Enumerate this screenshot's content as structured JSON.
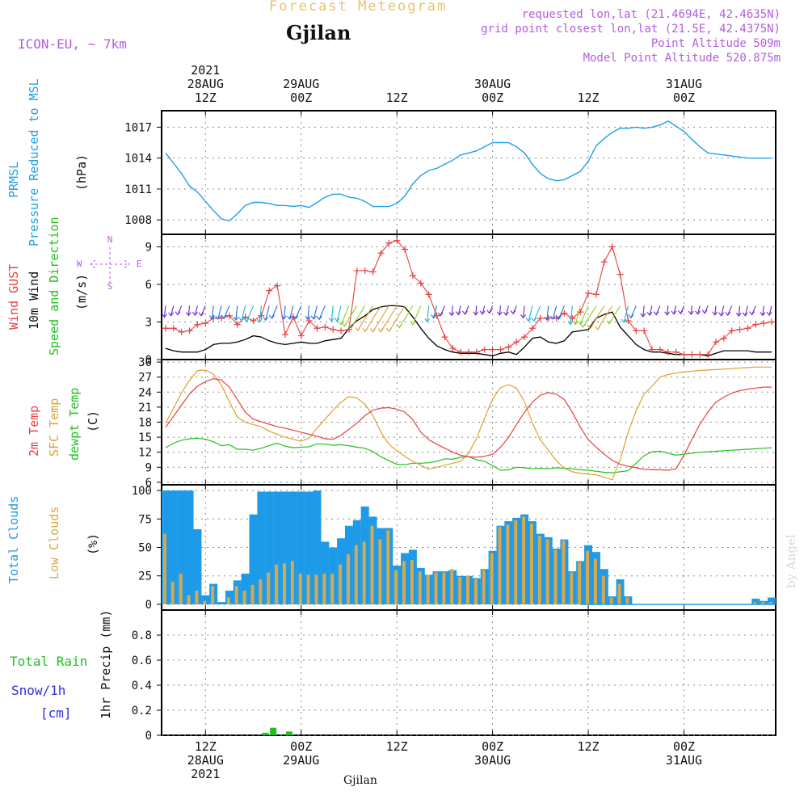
{
  "header": {
    "title": "Forecast Meteogram",
    "location": "Gjilan",
    "model": "ICON-EU, ~ 7km",
    "requested": "requested lon,lat (21.4694E, 42.4635N)",
    "grid_point": "grid point closest lon,lat (21.5E, 42.4375N)",
    "point_altitude": "Point Altitude 509m",
    "model_altitude": "Model Point Altitude 520.875m"
  },
  "footer": {
    "location": "Gjilan",
    "credit": "by Angel"
  },
  "colors": {
    "pressure": "#1ea0e8",
    "gust": "#e84040",
    "wind": "#000000",
    "temp2m": "#e84040",
    "sfc": "#e0a030",
    "dewpt": "#20c020",
    "total_clouds": "#1e9be8",
    "low_clouds": "#d9a84a",
    "rain": "#20c020",
    "snow": "#3030e0",
    "compass": "#b25ddc"
  },
  "time_axis": {
    "ticks": [
      {
        "t": 12,
        "top": [
          "2021",
          "28AUG",
          "12Z"
        ],
        "bottom": [
          "12Z",
          "28AUG",
          "2021"
        ]
      },
      {
        "t": 24,
        "top": [
          "29AUG",
          "00Z"
        ],
        "bottom": [
          "00Z",
          "29AUG"
        ]
      },
      {
        "t": 36,
        "top": [
          "12Z"
        ],
        "bottom": [
          "12Z"
        ]
      },
      {
        "t": 48,
        "top": [
          "30AUG",
          "00Z"
        ],
        "bottom": [
          "00Z",
          "30AUG"
        ]
      },
      {
        "t": 60,
        "top": [
          "12Z"
        ],
        "bottom": [
          "12Z"
        ]
      },
      {
        "t": 72,
        "top": [
          "31AUG",
          "00Z"
        ],
        "bottom": [
          "00Z",
          "31AUG"
        ]
      }
    ]
  },
  "chart_data": [
    {
      "type": "line",
      "panel": "pressure",
      "ylabel_lines": [
        "PRMSL",
        "Pressure Reduced to MSL"
      ],
      "unit": "(hPa)",
      "ylim": [
        1006.6,
        1018.6
      ],
      "yticks": [
        1008,
        1011,
        1014,
        1017
      ],
      "x_hours": [
        7,
        8,
        9,
        10,
        11,
        12,
        13,
        14,
        15,
        16,
        17,
        18,
        19,
        20,
        21,
        22,
        23,
        24,
        25,
        26,
        27,
        28,
        29,
        30,
        31,
        32,
        33,
        34,
        35,
        36,
        37,
        38,
        39,
        40,
        41,
        42,
        43,
        44,
        45,
        46,
        47,
        48,
        49,
        50,
        51,
        52,
        53,
        54,
        55,
        56,
        57,
        58,
        59,
        60,
        61,
        62,
        63,
        64,
        65,
        66,
        67,
        68,
        69,
        70,
        71,
        72,
        73,
        74,
        75,
        76,
        77,
        78,
        79,
        80,
        81,
        82,
        83
      ],
      "values": [
        1014.5,
        1013.5,
        1012.5,
        1011.3,
        1010.7,
        1009.8,
        1008.9,
        1008.1,
        1007.9,
        1008.6,
        1009.4,
        1009.7,
        1009.7,
        1009.6,
        1009.4,
        1009.4,
        1009.3,
        1009.4,
        1009.2,
        1009.7,
        1010.2,
        1010.5,
        1010.5,
        1010.2,
        1010.1,
        1009.8,
        1009.3,
        1009.3,
        1009.3,
        1009.6,
        1010.3,
        1011.5,
        1012.3,
        1012.8,
        1013.0,
        1013.4,
        1013.8,
        1014.3,
        1014.5,
        1014.7,
        1015.1,
        1015.5,
        1015.5,
        1015.5,
        1015.1,
        1014.5,
        1013.4,
        1012.5,
        1012.0,
        1011.8,
        1011.9,
        1012.3,
        1012.7,
        1013.7,
        1015.2,
        1015.9,
        1016.5,
        1016.9,
        1016.9,
        1017.0,
        1016.9,
        1017.0,
        1017.2,
        1017.6,
        1017.1,
        1016.6,
        1015.8,
        1015.1,
        1014.5,
        1014.4,
        1014.3,
        1014.2,
        1014.1,
        1014.0,
        1014.0,
        1014.0,
        1014.0
      ]
    },
    {
      "type": "line",
      "panel": "wind",
      "ylabel_lines": [
        "Wind GUST",
        "10m Wind",
        "Speed and Direction"
      ],
      "unit": "(m/s)",
      "ylim": [
        0,
        10
      ],
      "yticks": [
        0,
        3,
        6,
        9
      ],
      "compass": {
        "n": "N",
        "w": "W",
        "e": "E",
        "s": "S"
      },
      "x_hours": [
        7,
        8,
        9,
        10,
        11,
        12,
        13,
        14,
        15,
        16,
        17,
        18,
        19,
        20,
        21,
        22,
        23,
        24,
        25,
        26,
        27,
        28,
        29,
        30,
        31,
        32,
        33,
        34,
        35,
        36,
        37,
        38,
        39,
        40,
        41,
        42,
        43,
        44,
        45,
        46,
        47,
        48,
        49,
        50,
        51,
        52,
        53,
        54,
        55,
        56,
        57,
        58,
        59,
        60,
        61,
        62,
        63,
        64,
        65,
        66,
        67,
        68,
        69,
        70,
        71,
        72,
        73,
        74,
        75,
        76,
        77,
        78,
        79,
        80,
        81,
        82,
        83
      ],
      "series": [
        {
          "name": "Wind GUST",
          "values": [
            2.5,
            2.5,
            2.2,
            2.3,
            2.8,
            2.9,
            3.3,
            3.3,
            3.5,
            2.8,
            3.4,
            3.1,
            3.5,
            5.5,
            5.9,
            2.0,
            3.4,
            1.9,
            3.1,
            2.5,
            2.6,
            2.4,
            2.3,
            2.4,
            7.1,
            7.1,
            7.0,
            8.5,
            9.3,
            9.5,
            8.8,
            6.7,
            6.1,
            5.2,
            3.5,
            1.8,
            0.9,
            0.6,
            0.6,
            0.6,
            0.8,
            0.8,
            0.8,
            1.0,
            1.4,
            1.8,
            2.5,
            3.3,
            3.3,
            3.3,
            3.7,
            3.3,
            3.8,
            5.3,
            5.2,
            7.8,
            9.0,
            6.8,
            3.1,
            2.3,
            2.3,
            0.8,
            0.8,
            0.6,
            0.6,
            0.4,
            0.4,
            0.4,
            0.4,
            1.4,
            1.7,
            2.3,
            2.4,
            2.5,
            2.8,
            2.9,
            3.0
          ]
        },
        {
          "name": "10m Wind",
          "values": [
            0.9,
            0.7,
            0.6,
            0.6,
            0.6,
            0.8,
            1.2,
            1.3,
            1.3,
            1.4,
            1.6,
            1.9,
            1.8,
            1.5,
            1.3,
            1.2,
            1.3,
            1.4,
            1.3,
            1.3,
            1.5,
            1.6,
            1.7,
            2.5,
            3.1,
            3.5,
            4.0,
            4.2,
            4.3,
            4.3,
            4.2,
            3.4,
            2.5,
            1.7,
            1.1,
            0.8,
            0.6,
            0.5,
            0.5,
            0.5,
            0.4,
            0.3,
            0.5,
            0.6,
            0.4,
            1.0,
            1.7,
            1.8,
            1.4,
            1.3,
            1.5,
            2.2,
            2.3,
            2.4,
            3.3,
            3.6,
            3.8,
            2.6,
            1.9,
            1.2,
            0.8,
            0.6,
            0.6,
            0.5,
            0.4,
            0.4,
            0.4,
            0.4,
            0.3,
            0.5,
            0.7,
            0.7,
            0.7,
            0.7,
            0.6,
            0.6,
            0.6
          ]
        }
      ]
    },
    {
      "type": "line",
      "panel": "temperature",
      "ylabel_lines": [
        "2m Temp",
        "SFC Temp",
        "dewpt Temp"
      ],
      "unit": "(C)",
      "ylim": [
        5.5,
        30.5
      ],
      "yticks": [
        6,
        9,
        12,
        15,
        18,
        21,
        24,
        27,
        30
      ],
      "x_hours": [
        7,
        8,
        9,
        10,
        11,
        12,
        13,
        14,
        15,
        16,
        17,
        18,
        19,
        20,
        21,
        22,
        23,
        24,
        25,
        26,
        27,
        28,
        29,
        30,
        31,
        32,
        33,
        34,
        35,
        36,
        37,
        38,
        39,
        40,
        41,
        42,
        43,
        44,
        45,
        46,
        47,
        48,
        49,
        50,
        51,
        52,
        53,
        54,
        55,
        56,
        57,
        58,
        59,
        60,
        61,
        62,
        63,
        64,
        65,
        66,
        67,
        68,
        69,
        70,
        71,
        72,
        73,
        74,
        75,
        76,
        77,
        78,
        79,
        80,
        81,
        82,
        83
      ],
      "series": [
        {
          "name": "2m Temp",
          "values": [
            17.0,
            19.2,
            21.4,
            23.6,
            25.2,
            26.1,
            26.7,
            26.4,
            25.0,
            22.5,
            20.0,
            18.6,
            18.1,
            17.6,
            17.1,
            16.8,
            16.4,
            16.0,
            15.6,
            15.2,
            14.7,
            14.6,
            15.4,
            16.6,
            17.8,
            19.3,
            20.4,
            20.8,
            20.9,
            20.6,
            20.0,
            18.5,
            16.0,
            14.5,
            13.6,
            12.8,
            12.0,
            11.4,
            11.1,
            11.0,
            11.2,
            11.6,
            13.0,
            15.0,
            17.5,
            20.0,
            22.0,
            23.4,
            23.9,
            23.6,
            22.5,
            20.0,
            17.0,
            14.5,
            13.0,
            11.6,
            10.4,
            9.6,
            9.2,
            8.9,
            8.6,
            8.5,
            8.5,
            8.4,
            8.7,
            11.4,
            14.6,
            17.6,
            20.0,
            22.0,
            23.0,
            23.8,
            24.3,
            24.6,
            24.8,
            25.0,
            25.0
          ]
        },
        {
          "name": "SFC Temp",
          "values": [
            17.8,
            20.8,
            23.9,
            26.3,
            28.3,
            28.4,
            27.6,
            25.4,
            22.1,
            19.0,
            18.0,
            17.5,
            17.1,
            16.2,
            15.6,
            15.0,
            14.6,
            14.2,
            14.8,
            16.8,
            18.6,
            20.4,
            22.0,
            23.1,
            22.8,
            21.6,
            19.3,
            16.0,
            13.6,
            12.3,
            11.2,
            10.2,
            9.4,
            8.6,
            9.0,
            9.4,
            9.8,
            10.2,
            11.8,
            14.8,
            18.8,
            22.6,
            24.9,
            25.5,
            24.8,
            22.1,
            17.8,
            14.4,
            12.4,
            10.3,
            8.8,
            8.1,
            7.8,
            7.6,
            7.5,
            7.0,
            6.5,
            10.5,
            16.0,
            20.3,
            23.6,
            25.2,
            27.0,
            27.5,
            27.8,
            28.0,
            28.2,
            28.3,
            28.4,
            28.5,
            28.6,
            28.7,
            28.8,
            28.9,
            29.0,
            29.0,
            29.0
          ]
        },
        {
          "name": "dewpt Temp",
          "values": [
            12.9,
            13.8,
            14.4,
            14.7,
            14.8,
            14.6,
            14.1,
            13.3,
            13.5,
            12.6,
            12.6,
            12.4,
            12.8,
            13.3,
            13.8,
            13.2,
            12.9,
            13.0,
            13.1,
            13.7,
            13.6,
            13.4,
            13.5,
            13.3,
            13.0,
            12.8,
            12.1,
            11.1,
            10.3,
            9.6,
            9.5,
            9.8,
            9.8,
            9.9,
            10.2,
            10.7,
            10.6,
            11.0,
            11.1,
            10.5,
            10.2,
            9.3,
            8.4,
            8.5,
            9.0,
            8.9,
            8.7,
            8.8,
            8.7,
            8.9,
            8.8,
            8.7,
            8.5,
            8.4,
            8.2,
            8.0,
            7.9,
            8.1,
            8.3,
            9.8,
            11.3,
            12.1,
            12.2,
            11.8,
            11.4,
            11.6,
            11.8,
            12.0,
            12.1,
            12.2,
            12.3,
            12.4,
            12.5,
            12.6,
            12.7,
            12.8,
            12.9
          ]
        }
      ]
    },
    {
      "type": "bar",
      "panel": "clouds",
      "ylabel_lines": [
        "Total Clouds",
        "Low Clouds"
      ],
      "unit": "(%)",
      "ylim": [
        -5,
        105
      ],
      "yticks": [
        0,
        25,
        50,
        75,
        100
      ],
      "x_hours": [
        7,
        8,
        9,
        10,
        11,
        12,
        13,
        14,
        15,
        16,
        17,
        18,
        19,
        20,
        21,
        22,
        23,
        24,
        25,
        26,
        27,
        28,
        29,
        30,
        31,
        32,
        33,
        34,
        35,
        36,
        37,
        38,
        39,
        40,
        41,
        42,
        43,
        44,
        45,
        46,
        47,
        48,
        49,
        50,
        51,
        52,
        53,
        54,
        55,
        56,
        57,
        58,
        59,
        60,
        61,
        62,
        63,
        64,
        65,
        66,
        67,
        68,
        69,
        70,
        71,
        72,
        73,
        74,
        75,
        76,
        77,
        78,
        79,
        80,
        81,
        82,
        83
      ],
      "series": [
        {
          "name": "Total Clouds",
          "values": [
            100,
            100,
            100,
            100,
            66,
            8,
            18,
            2,
            12,
            21,
            27,
            79,
            99,
            99,
            99,
            99,
            99,
            99,
            99,
            100,
            55,
            50,
            58,
            69,
            74,
            86,
            77,
            67,
            67,
            34,
            45,
            48,
            32,
            26,
            29,
            29,
            30,
            25,
            25,
            23,
            31,
            47,
            69,
            73,
            76,
            79,
            73,
            62,
            59,
            49,
            57,
            29,
            38,
            52,
            46,
            31,
            7,
            22,
            7,
            0,
            0,
            0,
            0,
            0,
            0,
            0,
            0,
            0,
            0,
            0,
            0,
            0,
            0,
            0,
            5,
            3,
            6
          ]
        },
        {
          "name": "Low Clouds",
          "values": [
            62,
            20,
            27,
            8,
            12,
            3,
            16,
            0,
            6,
            16,
            12,
            17,
            22,
            28,
            35,
            36,
            38,
            27,
            26,
            26,
            27,
            27,
            35,
            44,
            52,
            55,
            69,
            57,
            65,
            30,
            38,
            39,
            29,
            26,
            28,
            28,
            31,
            24,
            25,
            22,
            30,
            45,
            68,
            70,
            74,
            77,
            71,
            60,
            57,
            48,
            56,
            28,
            37,
            47,
            40,
            25,
            6,
            18,
            6,
            0,
            0,
            0,
            0,
            0,
            0,
            0,
            0,
            0,
            0,
            0,
            0,
            0,
            0,
            0,
            2,
            2,
            2
          ]
        }
      ]
    },
    {
      "type": "bar",
      "panel": "precip",
      "ylabel_lines": [
        "Total   Rain",
        "Snow/1h",
        "[cm]"
      ],
      "ylabel_title": "1hr Precip (mm)",
      "ylim": [
        0,
        1.0
      ],
      "yticks": [
        0,
        0.2,
        0.4,
        0.6,
        0.8
      ],
      "ytick_labels": [
        "0",
        "0.2",
        "0.4",
        "0.6",
        "0.8"
      ],
      "x_hours": [
        19.5,
        20.5,
        22.5
      ],
      "series": [
        {
          "name": "Total Rain",
          "values": [
            0.02,
            0.06,
            0.03
          ]
        },
        {
          "name": "Snow/1h",
          "values": [
            0,
            0,
            0
          ]
        }
      ]
    }
  ]
}
